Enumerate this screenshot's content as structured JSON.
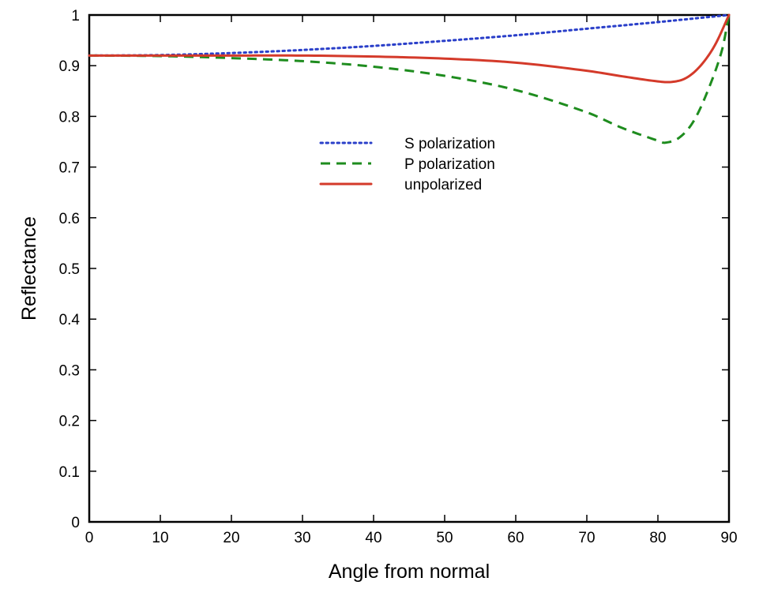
{
  "chart_data": {
    "type": "line",
    "title": "",
    "xlabel": "Angle from normal",
    "ylabel": "Reflectance",
    "xlim": [
      0,
      90
    ],
    "ylim": [
      0,
      1
    ],
    "xticks": [
      0,
      10,
      20,
      30,
      40,
      50,
      60,
      70,
      80,
      90
    ],
    "xtick_labels": [
      "0",
      "10",
      "20",
      "30",
      "40",
      "50",
      "60",
      "70",
      "80",
      "90"
    ],
    "yticks": [
      0,
      0.1,
      0.2,
      0.3,
      0.4,
      0.5,
      0.6,
      0.7,
      0.8,
      0.9,
      1
    ],
    "ytick_labels": [
      "0",
      "0.1",
      "0.2",
      "0.3",
      "0.4",
      "0.5",
      "0.6",
      "0.7",
      "0.8",
      "0.9",
      "1"
    ],
    "grid": false,
    "legend_position": "center",
    "series": [
      {
        "name": "S polarization",
        "style": "dotted",
        "color": "#2a3fc9",
        "x": [
          0,
          10,
          20,
          30,
          40,
          50,
          60,
          70,
          80,
          85,
          90
        ],
        "y": [
          0.92,
          0.921,
          0.925,
          0.931,
          0.939,
          0.949,
          0.96,
          0.973,
          0.986,
          0.993,
          1.0
        ]
      },
      {
        "name": "P polarization",
        "style": "dashed",
        "color": "#1e8c1e",
        "x": [
          0,
          10,
          20,
          30,
          40,
          50,
          60,
          70,
          75,
          80,
          81,
          83,
          85,
          87,
          89,
          90
        ],
        "y": [
          0.92,
          0.919,
          0.915,
          0.909,
          0.898,
          0.88,
          0.852,
          0.808,
          0.777,
          0.752,
          0.748,
          0.758,
          0.79,
          0.85,
          0.93,
          1.0
        ]
      },
      {
        "name": "unpolarized",
        "style": "solid",
        "color": "#d43a2a",
        "x": [
          0,
          10,
          20,
          30,
          40,
          50,
          60,
          70,
          75,
          80,
          82,
          84,
          86,
          88,
          90
        ],
        "y": [
          0.92,
          0.92,
          0.92,
          0.92,
          0.918,
          0.914,
          0.906,
          0.89,
          0.879,
          0.869,
          0.868,
          0.876,
          0.9,
          0.94,
          1.0
        ]
      }
    ]
  }
}
